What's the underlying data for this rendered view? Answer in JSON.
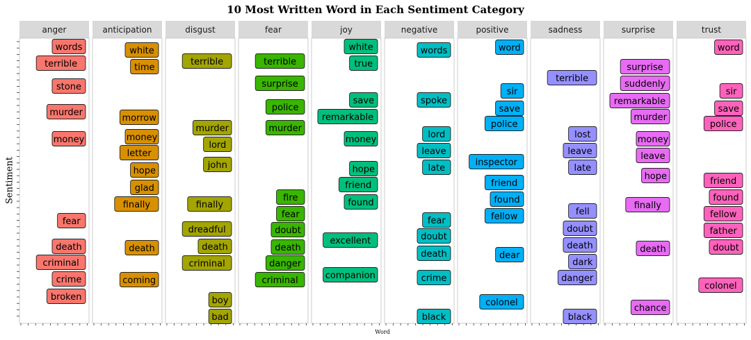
{
  "chart_data": {
    "type": "table",
    "title": "10 Most Written Word in Each Sentiment Category",
    "xlabel": "Word",
    "ylabel": "Sentiment",
    "grid": false,
    "categories": [
      "anger",
      "anticipation",
      "disgust",
      "fear",
      "joy",
      "negative",
      "positive",
      "sadness",
      "surprise",
      "trust"
    ],
    "colors": [
      "#F8766D",
      "#D89000",
      "#A3A500",
      "#39B600",
      "#00BF7D",
      "#00BFC4",
      "#00B0F6",
      "#9590FF",
      "#E76BF3",
      "#FF62BC"
    ],
    "series": [
      {
        "name": "anger",
        "values": [
          "words",
          "terrible",
          "stone",
          "murder",
          "money",
          "fear",
          "death",
          "criminal",
          "crime",
          "broken"
        ]
      },
      {
        "name": "anticipation",
        "values": [
          "white",
          "time",
          "morrow",
          "money",
          "letter",
          "hope",
          "glad",
          "finally",
          "death",
          "coming"
        ]
      },
      {
        "name": "disgust",
        "values": [
          "terrible",
          "murder",
          "lord",
          "john",
          "finally",
          "dreadful",
          "death",
          "criminal",
          "boy",
          "bad"
        ]
      },
      {
        "name": "fear",
        "values": [
          "terrible",
          "surprise",
          "police",
          "murder",
          "fire",
          "fear",
          "doubt",
          "death",
          "danger",
          "criminal"
        ]
      },
      {
        "name": "joy",
        "values": [
          "white",
          "true",
          "save",
          "remarkable",
          "money",
          "hope",
          "friend",
          "found",
          "excellent",
          "companion"
        ]
      },
      {
        "name": "negative",
        "values": [
          "words",
          "spoke",
          "lord",
          "leave",
          "late",
          "fear",
          "doubt",
          "death",
          "crime",
          "black"
        ]
      },
      {
        "name": "positive",
        "values": [
          "word",
          "sir",
          "save",
          "police",
          "inspector",
          "friend",
          "found",
          "fellow",
          "dear",
          "colonel"
        ]
      },
      {
        "name": "sadness",
        "values": [
          "terrible",
          "lost",
          "leave",
          "late",
          "fell",
          "doubt",
          "death",
          "dark",
          "danger",
          "black"
        ]
      },
      {
        "name": "surprise",
        "values": [
          "surprise",
          "suddenly",
          "remarkable",
          "murder",
          "money",
          "leave",
          "hope",
          "finally",
          "death",
          "chance"
        ]
      },
      {
        "name": "trust",
        "values": [
          "word",
          "sir",
          "save",
          "police",
          "friend",
          "found",
          "fellow",
          "father",
          "doubt",
          "colonel"
        ]
      }
    ]
  }
}
